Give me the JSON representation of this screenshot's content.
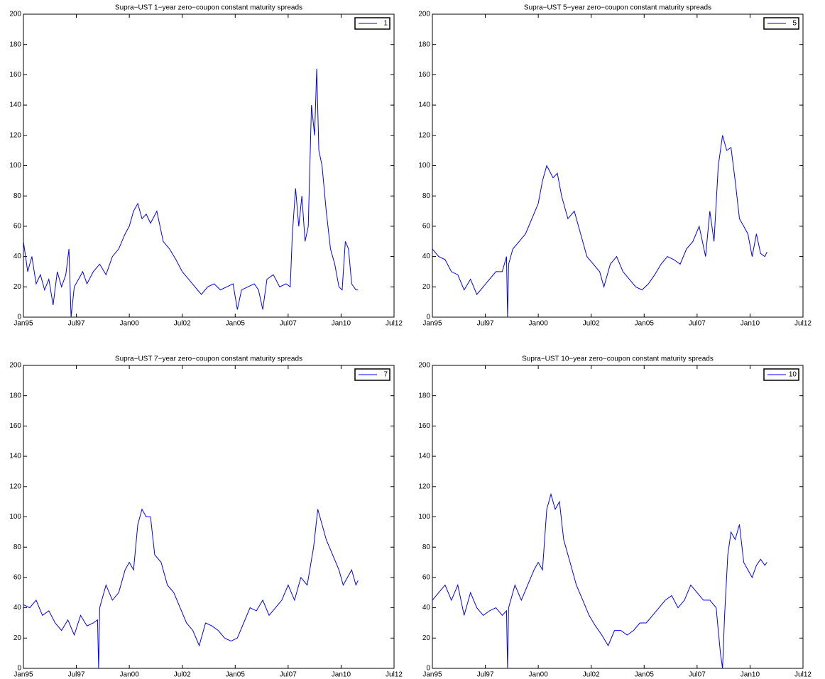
{
  "chart_data": [
    {
      "type": "line",
      "title": "Supra−UST 1−year zero−coupon constant maturity spreads",
      "x": [
        1995.0,
        1995.2,
        1995.4,
        1995.6,
        1995.8,
        1996.0,
        1996.2,
        1996.4,
        1996.6,
        1996.8,
        1997.0,
        1997.15,
        1997.25,
        1997.4,
        1997.6,
        1997.8,
        1998.0,
        1998.3,
        1998.6,
        1998.9,
        1999.2,
        1999.5,
        1999.8,
        2000.0,
        2000.2,
        2000.4,
        2000.6,
        2000.8,
        2001.0,
        2001.3,
        2001.6,
        2001.9,
        2002.2,
        2002.5,
        2002.8,
        2003.1,
        2003.4,
        2003.7,
        2004.0,
        2004.3,
        2004.6,
        2004.9,
        2005.1,
        2005.3,
        2005.6,
        2005.9,
        2006.1,
        2006.3,
        2006.5,
        2006.8,
        2007.1,
        2007.4,
        2007.6,
        2007.7,
        2007.85,
        2008.0,
        2008.15,
        2008.3,
        2008.45,
        2008.6,
        2008.75,
        2008.85,
        2008.95,
        2009.1,
        2009.3,
        2009.5,
        2009.7,
        2009.9,
        2010.05,
        2010.2,
        2010.35,
        2010.5,
        2010.7,
        2010.8
      ],
      "series": [
        {
          "name": "1",
          "color": "#0000ff",
          "values": [
            50,
            30,
            40,
            22,
            28,
            18,
            25,
            8,
            30,
            20,
            28,
            45,
            0,
            20,
            25,
            30,
            22,
            30,
            35,
            28,
            40,
            45,
            55,
            60,
            70,
            75,
            65,
            68,
            62,
            70,
            50,
            45,
            38,
            30,
            25,
            20,
            15,
            20,
            22,
            18,
            20,
            22,
            5,
            18,
            20,
            22,
            18,
            5,
            25,
            28,
            20,
            22,
            20,
            55,
            85,
            60,
            80,
            50,
            60,
            140,
            120,
            164,
            110,
            100,
            70,
            45,
            35,
            20,
            18,
            50,
            45,
            22,
            18,
            18
          ]
        }
      ],
      "xlim": [
        1995,
        2012.5
      ],
      "xticks": [
        {
          "value": 1995,
          "label": "Jan95"
        },
        {
          "value": 1997.5,
          "label": "Jul97"
        },
        {
          "value": 2000,
          "label": "Jan00"
        },
        {
          "value": 2002.5,
          "label": "Jul02"
        },
        {
          "value": 2005,
          "label": "Jan05"
        },
        {
          "value": 2007.5,
          "label": "Jul07"
        },
        {
          "value": 2010,
          "label": "Jan10"
        },
        {
          "value": 2012.5,
          "label": "Jul12"
        }
      ],
      "ylim": [
        0,
        200
      ],
      "yticks": [
        0,
        20,
        40,
        60,
        80,
        100,
        120,
        140,
        160,
        180,
        200
      ],
      "legend": "upper right"
    },
    {
      "type": "line",
      "title": "Supra−UST 5−year zero−coupon constant maturity spreads",
      "x": [
        1995.0,
        1995.3,
        1995.6,
        1995.9,
        1996.2,
        1996.5,
        1996.8,
        1997.1,
        1997.4,
        1997.7,
        1998.0,
        1998.3,
        1998.5,
        1998.55,
        1998.6,
        1998.8,
        1999.1,
        1999.4,
        1999.7,
        2000.0,
        2000.2,
        2000.4,
        2000.7,
        2000.9,
        2001.1,
        2001.4,
        2001.7,
        2002.0,
        2002.3,
        2002.6,
        2002.9,
        2003.1,
        2003.4,
        2003.7,
        2004.0,
        2004.3,
        2004.6,
        2004.9,
        2005.2,
        2005.5,
        2005.8,
        2006.1,
        2006.4,
        2006.7,
        2007.0,
        2007.3,
        2007.6,
        2007.9,
        2008.1,
        2008.3,
        2008.5,
        2008.7,
        2008.9,
        2009.1,
        2009.3,
        2009.5,
        2009.7,
        2009.9,
        2010.1,
        2010.3,
        2010.5,
        2010.7,
        2010.8
      ],
      "series": [
        {
          "name": "5",
          "color": "#0000ff",
          "values": [
            45,
            40,
            38,
            30,
            28,
            18,
            25,
            15,
            20,
            25,
            30,
            30,
            40,
            0,
            35,
            45,
            50,
            55,
            65,
            75,
            90,
            100,
            92,
            95,
            80,
            65,
            70,
            55,
            40,
            35,
            30,
            20,
            35,
            40,
            30,
            25,
            20,
            18,
            22,
            28,
            35,
            40,
            38,
            35,
            45,
            50,
            60,
            40,
            70,
            50,
            100,
            120,
            110,
            112,
            90,
            65,
            60,
            55,
            40,
            55,
            42,
            40,
            43
          ]
        }
      ],
      "xlim": [
        1995,
        2012.5
      ],
      "xticks": [
        {
          "value": 1995,
          "label": "Jan95"
        },
        {
          "value": 1997.5,
          "label": "Jul97"
        },
        {
          "value": 2000,
          "label": "Jan00"
        },
        {
          "value": 2002.5,
          "label": "Jul02"
        },
        {
          "value": 2005,
          "label": "Jan05"
        },
        {
          "value": 2007.5,
          "label": "Jul07"
        },
        {
          "value": 2010,
          "label": "Jan10"
        },
        {
          "value": 2012.5,
          "label": "Jul12"
        }
      ],
      "ylim": [
        0,
        200
      ],
      "yticks": [
        0,
        20,
        40,
        60,
        80,
        100,
        120,
        140,
        160,
        180,
        200
      ],
      "legend": "upper right"
    },
    {
      "type": "line",
      "title": "Supra−UST 7−year zero−coupon constant maturity spreads",
      "x": [
        1995.0,
        1995.3,
        1995.6,
        1995.9,
        1996.2,
        1996.5,
        1996.8,
        1997.1,
        1997.4,
        1997.7,
        1998.0,
        1998.3,
        1998.5,
        1998.55,
        1998.6,
        1998.9,
        1999.2,
        1999.5,
        1999.8,
        2000.0,
        2000.2,
        2000.4,
        2000.6,
        2000.8,
        2001.0,
        2001.2,
        2001.5,
        2001.8,
        2002.1,
        2002.4,
        2002.7,
        2003.0,
        2003.3,
        2003.6,
        2003.9,
        2004.2,
        2004.5,
        2004.8,
        2005.1,
        2005.4,
        2005.7,
        2006.0,
        2006.3,
        2006.6,
        2006.9,
        2007.2,
        2007.5,
        2007.8,
        2008.1,
        2008.4,
        2008.7,
        2008.9,
        2009.1,
        2009.3,
        2009.6,
        2009.9,
        2010.1,
        2010.3,
        2010.5,
        2010.7,
        2010.8
      ],
      "series": [
        {
          "name": "7",
          "color": "#0000ff",
          "values": [
            42,
            40,
            45,
            35,
            38,
            30,
            25,
            32,
            22,
            35,
            28,
            30,
            32,
            0,
            40,
            55,
            45,
            50,
            65,
            70,
            65,
            95,
            105,
            100,
            100,
            75,
            70,
            55,
            50,
            40,
            30,
            25,
            15,
            30,
            28,
            25,
            20,
            18,
            20,
            30,
            40,
            38,
            45,
            35,
            40,
            45,
            55,
            45,
            60,
            55,
            80,
            105,
            95,
            85,
            75,
            65,
            55,
            60,
            65,
            55,
            58
          ]
        }
      ],
      "xlim": [
        1995,
        2012.5
      ],
      "xticks": [
        {
          "value": 1995,
          "label": "Jan95"
        },
        {
          "value": 1997.5,
          "label": "Jul97"
        },
        {
          "value": 2000,
          "label": "Jan00"
        },
        {
          "value": 2002.5,
          "label": "Jul02"
        },
        {
          "value": 2005,
          "label": "Jan05"
        },
        {
          "value": 2007.5,
          "label": "Jul07"
        },
        {
          "value": 2010,
          "label": "Jan10"
        },
        {
          "value": 2012.5,
          "label": "Jul12"
        }
      ],
      "ylim": [
        0,
        200
      ],
      "yticks": [
        0,
        20,
        40,
        60,
        80,
        100,
        120,
        140,
        160,
        180,
        200
      ],
      "legend": "upper right"
    },
    {
      "type": "line",
      "title": "Supra−UST 10−year zero−coupon constant maturity spreads",
      "x": [
        1995.0,
        1995.3,
        1995.6,
        1995.9,
        1996.2,
        1996.5,
        1996.8,
        1997.1,
        1997.4,
        1997.7,
        1998.0,
        1998.3,
        1998.5,
        1998.55,
        1998.6,
        1998.9,
        1999.2,
        1999.5,
        1999.8,
        2000.0,
        2000.2,
        2000.4,
        2000.6,
        2000.8,
        2001.0,
        2001.2,
        2001.5,
        2001.8,
        2002.1,
        2002.4,
        2002.7,
        2003.0,
        2003.3,
        2003.6,
        2003.9,
        2004.2,
        2004.5,
        2004.8,
        2005.1,
        2005.4,
        2005.7,
        2006.0,
        2006.3,
        2006.6,
        2006.9,
        2007.2,
        2007.5,
        2007.8,
        2008.1,
        2008.4,
        2008.6,
        2008.7,
        2008.8,
        2008.95,
        2009.1,
        2009.3,
        2009.5,
        2009.7,
        2009.9,
        2010.1,
        2010.3,
        2010.5,
        2010.7,
        2010.8
      ],
      "series": [
        {
          "name": "10",
          "color": "#0000ff",
          "values": [
            45,
            50,
            55,
            45,
            55,
            35,
            50,
            40,
            35,
            38,
            40,
            35,
            38,
            0,
            40,
            55,
            45,
            55,
            65,
            70,
            65,
            105,
            115,
            105,
            110,
            85,
            70,
            55,
            45,
            35,
            28,
            22,
            15,
            25,
            25,
            22,
            25,
            30,
            30,
            35,
            40,
            45,
            48,
            40,
            45,
            55,
            50,
            45,
            45,
            40,
            10,
            0,
            35,
            75,
            90,
            85,
            95,
            70,
            65,
            60,
            68,
            72,
            68,
            70
          ]
        }
      ],
      "xlim": [
        1995,
        2012.5
      ],
      "xticks": [
        {
          "value": 1995,
          "label": "Jan95"
        },
        {
          "value": 1997.5,
          "label": "Jul97"
        },
        {
          "value": 2000,
          "label": "Jan00"
        },
        {
          "value": 2002.5,
          "label": "Jul02"
        },
        {
          "value": 2005,
          "label": "Jan05"
        },
        {
          "value": 2007.5,
          "label": "Jul07"
        },
        {
          "value": 2010,
          "label": "Jan10"
        },
        {
          "value": 2012.5,
          "label": "Jul12"
        }
      ],
      "ylim": [
        0,
        200
      ],
      "yticks": [
        0,
        20,
        40,
        60,
        80,
        100,
        120,
        140,
        160,
        180,
        200
      ],
      "legend": "upper right"
    }
  ]
}
